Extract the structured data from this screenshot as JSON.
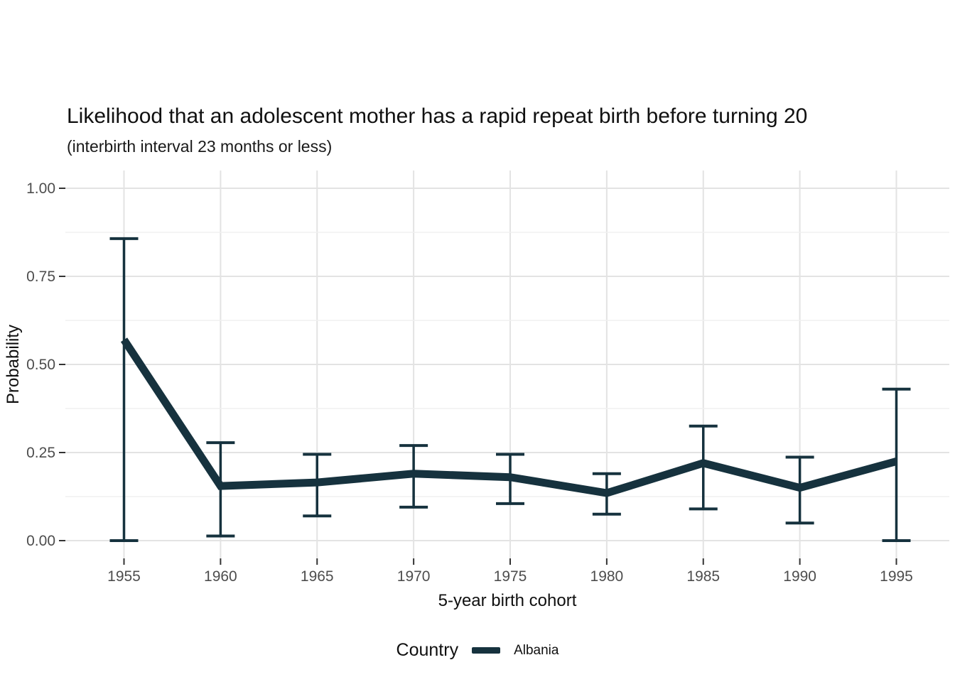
{
  "chart_data": {
    "type": "line",
    "title": "Likelihood that an adolescent mother has a rapid repeat birth before turning 20",
    "subtitle": "(interbirth interval 23 months or less)",
    "xlabel": "5-year birth cohort",
    "ylabel": "Probability",
    "x": [
      1955,
      1960,
      1965,
      1970,
      1975,
      1980,
      1985,
      1990,
      1995
    ],
    "x_tick_labels": [
      "1955",
      "1960",
      "1965",
      "1970",
      "1975",
      "1980",
      "1985",
      "1990",
      "1995"
    ],
    "series": [
      {
        "name": "Albania",
        "values": [
          0.57,
          0.155,
          0.165,
          0.19,
          0.18,
          0.135,
          0.22,
          0.15,
          0.225
        ],
        "ci_lower": [
          0.0,
          0.013,
          0.07,
          0.095,
          0.105,
          0.075,
          0.09,
          0.05,
          0.0
        ],
        "ci_upper": [
          0.857,
          0.278,
          0.245,
          0.27,
          0.245,
          0.19,
          0.325,
          0.237,
          0.43
        ]
      }
    ],
    "ylim": [
      0,
      1
    ],
    "yticks_major": [
      0,
      0.25,
      0.5,
      0.75,
      1
    ],
    "ytick_labels": [
      "0.00",
      "0.25",
      "0.50",
      "0.75",
      "1.00"
    ],
    "yticks_minor": [
      0.125,
      0.375,
      0.625,
      0.875
    ],
    "grid": "horizontal major+minor, vertical major only",
    "legend": {
      "title": "Country",
      "entries": [
        "Albania"
      ],
      "position": "bottom"
    },
    "colors": {
      "line": "#16323e",
      "grid_major": "#e3e3e3",
      "grid_minor": "#f0f0f0",
      "tick": "#333333",
      "axis_text": "#4d4d4d",
      "title_text": "#101010"
    }
  }
}
